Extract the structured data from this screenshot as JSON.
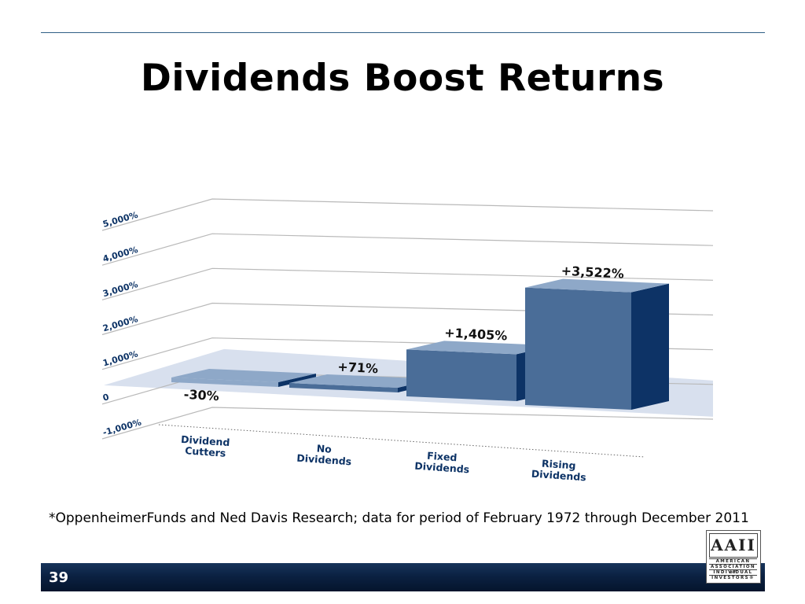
{
  "slide": {
    "title": "Dividends Boost Returns",
    "footnote": "*OppenheimerFunds and Ned Davis Research; data for period of February 1972 through December 2011",
    "page_number": "39",
    "logo": {
      "mark": "AAII",
      "lines": [
        "AMERICAN",
        "ASSOCIATION of",
        "INDIVIDUAL",
        "INVESTORS®"
      ]
    }
  },
  "chart_data": {
    "type": "bar",
    "title": "",
    "xlabel": "",
    "ylabel": "",
    "ylim": [
      -1000,
      5000
    ],
    "yticks": [
      -1000,
      0,
      1000,
      2000,
      3000,
      4000,
      5000
    ],
    "ytick_labels": [
      "-1,000%",
      "0",
      "1,000%",
      "2,000%",
      "3,000%",
      "4,000%",
      "5,000%"
    ],
    "categories": [
      "Dividend Cutters",
      "No Dividends",
      "Fixed Dividends",
      "Rising Dividends"
    ],
    "category_lines": [
      [
        "Dividend",
        "Cutters"
      ],
      [
        "No",
        "Dividends"
      ],
      [
        "Fixed",
        "Dividends"
      ],
      [
        "Rising",
        "Dividends"
      ]
    ],
    "values": [
      -30,
      71,
      1405,
      3522
    ],
    "value_labels": [
      "-30%",
      "+71%",
      "+1,405%",
      "+3,522%"
    ],
    "grid": true,
    "colors": {
      "front": "#4a6d98",
      "side": "#0d3366",
      "top": "#8ea8c8",
      "floor": "#d8e0ee",
      "grid": "#b9b9b9",
      "label": "#0d3366"
    }
  }
}
